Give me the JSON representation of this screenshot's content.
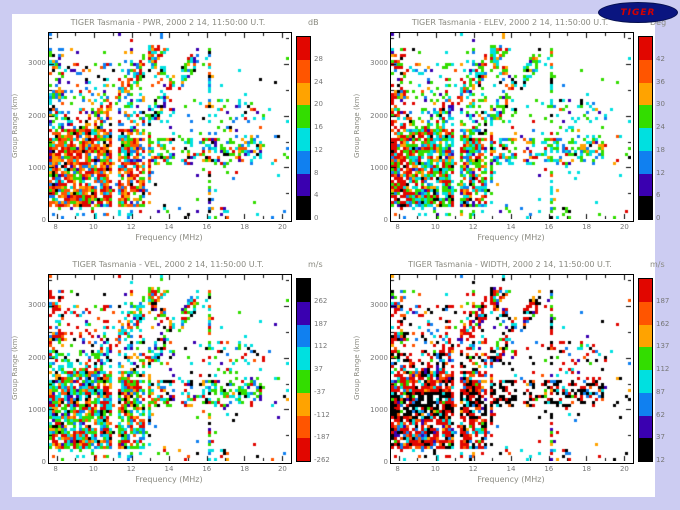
{
  "slide": {
    "bg": "#ccccf2",
    "content_bg": "#ffffff"
  },
  "logo": {
    "label": "TIGER"
  },
  "chart_data": [
    {
      "type": "heatmap",
      "parameter": "PWR",
      "title": "TIGER Tasmania - PWR, 2000 2 14, 11:50:00 U.T.",
      "unit": "dB",
      "xlabel": "Frequency (MHz)",
      "ylabel": "Group Range (km)",
      "xlim": [
        7.6,
        20.4
      ],
      "ylim": [
        0,
        3600
      ],
      "x_ticks": [
        8,
        10,
        12,
        14,
        16,
        18,
        20
      ],
      "y_ticks": [
        0,
        1000,
        2000,
        3000
      ],
      "colorbar": {
        "labels": [
          "28",
          "24",
          "20",
          "16",
          "12",
          "8",
          "4",
          "0"
        ],
        "colors": [
          "#e10600",
          "#ff5500",
          "#ffa300",
          "#33dd00",
          "#00e0e0",
          "#1080f0",
          "#3a00b0",
          "#000000"
        ]
      },
      "description": "Backscatter power: intense red/orange echoes 8-13 MHz below ~1500 km, green/cyan diagonal bands rising toward 3000 km, cyan band near 1200 km extending to ~17 MHz."
    },
    {
      "type": "heatmap",
      "parameter": "ELEV",
      "title": "TIGER Tasmania - ELEV, 2000 2 14, 11:50:00 U.T.",
      "unit": "Deg",
      "xlabel": "Frequency (MHz)",
      "ylabel": "Group Range (km)",
      "xlim": [
        7.6,
        20.4
      ],
      "ylim": [
        0,
        3600
      ],
      "x_ticks": [
        8,
        10,
        12,
        14,
        16,
        18,
        20
      ],
      "y_ticks": [
        0,
        1000,
        2000,
        3000
      ],
      "colorbar": {
        "labels": [
          "42",
          "36",
          "30",
          "24",
          "18",
          "12",
          "6",
          "0"
        ],
        "colors": [
          "#e10600",
          "#ff5500",
          "#ffa300",
          "#33dd00",
          "#00e0e0",
          "#1080f0",
          "#3a00b0",
          "#000000"
        ]
      },
      "description": "Elevation angle: mostly green/cyan (mid angles) with high-angle red column at lowest frequencies and scattered blue/black cells."
    },
    {
      "type": "heatmap",
      "parameter": "VEL",
      "title": "TIGER Tasmania - VEL, 2000 2 14, 11:50:00 U.T.",
      "unit": "m/s",
      "xlabel": "Frequency (MHz)",
      "ylabel": "Group Range (km)",
      "xlim": [
        7.6,
        20.4
      ],
      "ylim": [
        0,
        3600
      ],
      "x_ticks": [
        8,
        10,
        12,
        14,
        16,
        18,
        20
      ],
      "y_ticks": [
        0,
        1000,
        2000,
        3000
      ],
      "colorbar": {
        "labels": [
          "262",
          "187",
          "112",
          "37",
          "-37",
          "-112",
          "-187",
          "-262"
        ],
        "colors": [
          "#000000",
          "#3a00b0",
          "#1080f0",
          "#00e0e0",
          "#33dd00",
          "#ffa300",
          "#ff5500",
          "#e10600"
        ]
      },
      "description": "Doppler velocity: predominantly near-zero cyan/green echoes with a strong negative (red) patch at low frequency / high range and dark positive cells along the mid-range band."
    },
    {
      "type": "heatmap",
      "parameter": "WIDTH",
      "title": "TIGER Tasmania - WIDTH, 2000 2 14, 11:50:00 U.T.",
      "unit": "m/s",
      "xlabel": "Frequency (MHz)",
      "ylabel": "Group Range (km)",
      "xlim": [
        7.6,
        20.4
      ],
      "ylim": [
        0,
        3600
      ],
      "x_ticks": [
        8,
        10,
        12,
        14,
        16,
        18,
        20
      ],
      "y_ticks": [
        0,
        1000,
        2000,
        3000
      ],
      "colorbar": {
        "labels": [
          "187",
          "162",
          "137",
          "112",
          "87",
          "62",
          "37",
          "12"
        ],
        "colors": [
          "#e10600",
          "#ff5500",
          "#ffa300",
          "#33dd00",
          "#00e0e0",
          "#1080f0",
          "#3a00b0",
          "#000000"
        ]
      },
      "description": "Spectral width: large red widths over most echoes with a thick black (narrow-width) band near 1000-1300 km extending across all frequencies."
    }
  ]
}
